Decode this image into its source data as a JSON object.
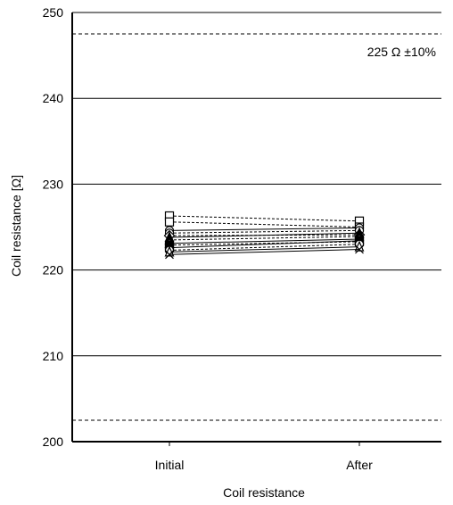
{
  "chart_data": {
    "type": "line",
    "title": "",
    "xlabel": "Coil resistance",
    "ylabel": "Coil resistance  [Ω]",
    "categories": [
      "Initial",
      "After"
    ],
    "ylim": [
      200,
      250
    ],
    "yticks": [
      200,
      210,
      220,
      230,
      240,
      250
    ],
    "grid": true,
    "annotations": [
      {
        "text": "225 Ω ±10%"
      }
    ],
    "reference_lines": [
      247.5,
      202.5
    ],
    "series": [
      {
        "values": [
          226.3,
          225.7
        ],
        "marker": "square-open",
        "dash": true
      },
      {
        "values": [
          225.6,
          225.0
        ],
        "marker": "square-open",
        "dash": true
      },
      {
        "values": [
          224.6,
          224.9
        ],
        "marker": "circle-open",
        "dash": false
      },
      {
        "values": [
          224.3,
          224.6
        ],
        "marker": "circle-open",
        "dash": true
      },
      {
        "values": [
          224.0,
          224.1
        ],
        "marker": "diamond-open",
        "dash": true
      },
      {
        "values": [
          223.8,
          224.3
        ],
        "marker": "triangle-filled",
        "dash": false
      },
      {
        "values": [
          223.5,
          223.9
        ],
        "marker": "triangle-filled",
        "dash": true
      },
      {
        "values": [
          223.1,
          223.6
        ],
        "marker": "triangle-open",
        "dash": false
      },
      {
        "values": [
          222.9,
          223.3
        ],
        "marker": "square-filled",
        "dash": true
      },
      {
        "values": [
          222.6,
          223.4
        ],
        "marker": "square-filled",
        "dash": false
      },
      {
        "values": [
          222.3,
          223.0
        ],
        "marker": "circle-open",
        "dash": true
      },
      {
        "values": [
          222.1,
          222.7
        ],
        "marker": "triangle-open",
        "dash": false
      },
      {
        "values": [
          221.8,
          222.4
        ],
        "marker": "cross",
        "dash": false
      }
    ]
  }
}
